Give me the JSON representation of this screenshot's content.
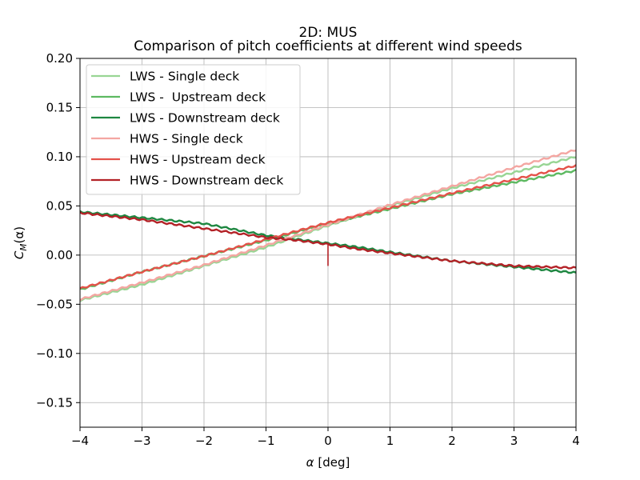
{
  "chart_data": {
    "type": "line",
    "title": "2D: MUS",
    "subtitle": "Comparison of pitch coefficients at different wind speeds",
    "xlabel_symbol": "α",
    "xlabel_unit": "[deg]",
    "ylabel_main": "C",
    "ylabel_sub": "M",
    "ylabel_arg": "(α)",
    "xlim": [
      -4,
      4
    ],
    "ylim": [
      -0.175,
      0.2
    ],
    "xticks": [
      -4,
      -3,
      -2,
      -1,
      0,
      1,
      2,
      3,
      4
    ],
    "xtick_labels": [
      "−4",
      "−3",
      "−2",
      "−1",
      "0",
      "1",
      "2",
      "3",
      "4"
    ],
    "yticks": [
      -0.15,
      -0.1,
      -0.05,
      0.0,
      0.05,
      0.1,
      0.15,
      0.2
    ],
    "ytick_labels": [
      "−0.15",
      "−0.10",
      "−0.05",
      "0.00",
      "0.05",
      "0.10",
      "0.15",
      "0.20"
    ],
    "grid": true,
    "legend_position": "top-left",
    "series": [
      {
        "name": "LWS - Single deck",
        "color": "#98d594",
        "points": [
          [
            -4,
            -0.046
          ],
          [
            -3,
            -0.03
          ],
          [
            -2,
            -0.011
          ],
          [
            -1,
            0.008
          ],
          [
            0,
            0.03
          ],
          [
            1,
            0.05
          ],
          [
            2,
            0.068
          ],
          [
            3,
            0.084
          ],
          [
            4,
            0.1
          ]
        ]
      },
      {
        "name": "LWS -  Upstream deck",
        "color": "#5db961",
        "points": [
          [
            -4,
            -0.035
          ],
          [
            -3,
            -0.017
          ],
          [
            -2,
            -0.001
          ],
          [
            -1,
            0.015
          ],
          [
            0,
            0.032
          ],
          [
            1,
            0.047
          ],
          [
            2,
            0.062
          ],
          [
            3,
            0.074
          ],
          [
            4,
            0.086
          ]
        ]
      },
      {
        "name": "LWS - Downstream deck",
        "color": "#1e8741",
        "points": [
          [
            -4,
            0.044
          ],
          [
            -3,
            0.038
          ],
          [
            -2,
            0.032
          ],
          [
            -1,
            0.02
          ],
          [
            -0.5,
            0.016
          ],
          [
            0,
            0.012
          ],
          [
            0.5,
            0.008
          ],
          [
            1,
            0.003
          ],
          [
            2,
            -0.006
          ],
          [
            3,
            -0.012
          ],
          [
            4,
            -0.018
          ]
        ]
      },
      {
        "name": "HWS - Single deck",
        "color": "#f4a6a2",
        "points": [
          [
            -4,
            -0.045
          ],
          [
            -3,
            -0.028
          ],
          [
            -2,
            -0.01
          ],
          [
            -1,
            0.01
          ],
          [
            0,
            0.031
          ],
          [
            1,
            0.051
          ],
          [
            2,
            0.07
          ],
          [
            3,
            0.089
          ],
          [
            4,
            0.107
          ]
        ]
      },
      {
        "name": "HWS - Upstream deck",
        "color": "#e4524a",
        "points": [
          [
            -4,
            -0.034
          ],
          [
            -3,
            -0.017
          ],
          [
            -2,
            -0.001
          ],
          [
            -1,
            0.016
          ],
          [
            0,
            0.033
          ],
          [
            1,
            0.048
          ],
          [
            2,
            0.063
          ],
          [
            3,
            0.077
          ],
          [
            4,
            0.091
          ]
        ]
      },
      {
        "name": "HWS - Downstream deck",
        "color": "#b32227",
        "points": [
          [
            -4,
            0.043
          ],
          [
            -3,
            0.036
          ],
          [
            -2,
            0.027
          ],
          [
            -1,
            0.018
          ],
          [
            -0.5,
            0.015
          ],
          [
            0,
            0.011
          ],
          [
            0.5,
            0.006
          ],
          [
            1,
            0.002
          ],
          [
            2,
            -0.006
          ],
          [
            3,
            -0.011
          ],
          [
            4,
            -0.013
          ]
        ]
      }
    ],
    "annotations": [
      {
        "note": "HWS - Downstream deck spike",
        "x": 0,
        "y_from": 0.012,
        "y_to": -0.011,
        "color": "#b32227"
      }
    ]
  }
}
